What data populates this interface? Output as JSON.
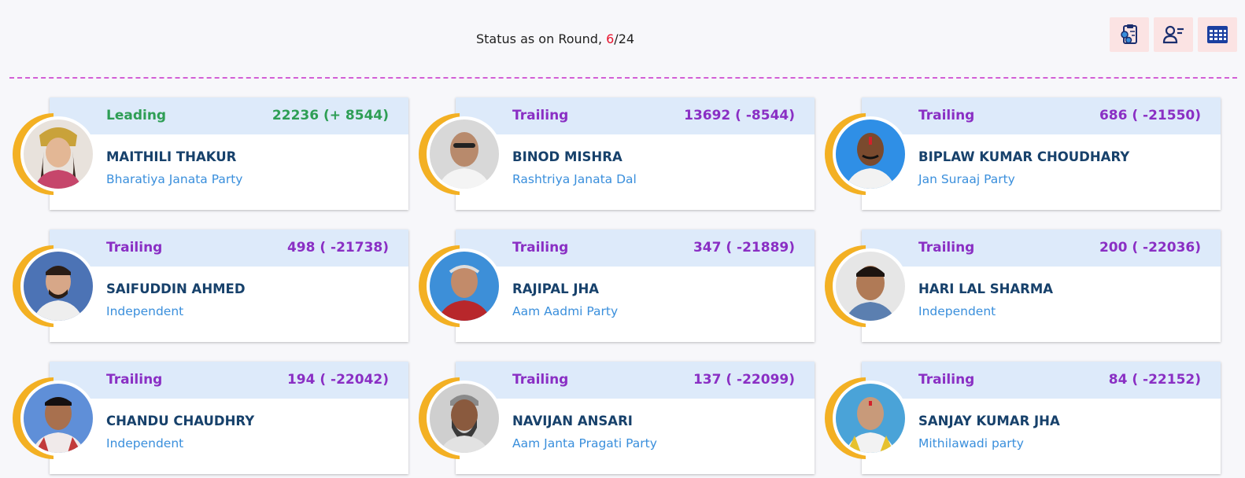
{
  "header": {
    "status_prefix": "Status as on Round, ",
    "round_current": "6",
    "round_total": "/24",
    "icons": [
      "clipboard-settings-icon",
      "user-list-icon",
      "calendar-grid-icon"
    ]
  },
  "colors": {
    "leading": "#2e9e55",
    "trailing": "#8a2fc4",
    "accent_ring": "#f3b023",
    "divider": "#d35fd6",
    "round_current": "#e8122d"
  },
  "candidates": [
    {
      "status": "Leading",
      "votes": "22236 (+ 8544)",
      "name": "MAITHILI THAKUR",
      "party": "Bharatiya Janata Party"
    },
    {
      "status": "Trailing",
      "votes": "13692 ( -8544)",
      "name": "BINOD MISHRA",
      "party": "Rashtriya Janata Dal"
    },
    {
      "status": "Trailing",
      "votes": "686 ( -21550)",
      "name": "BIPLAW KUMAR CHOUDHARY",
      "party": "Jan Suraaj Party"
    },
    {
      "status": "Trailing",
      "votes": "498 ( -21738)",
      "name": "SAIFUDDIN AHMED",
      "party": "Independent"
    },
    {
      "status": "Trailing",
      "votes": "347 ( -21889)",
      "name": "RAJIPAL JHA",
      "party": "Aam Aadmi Party"
    },
    {
      "status": "Trailing",
      "votes": "200 ( -22036)",
      "name": "HARI LAL SHARMA",
      "party": "Independent"
    },
    {
      "status": "Trailing",
      "votes": "194 ( -22042)",
      "name": "CHANDU CHAUDHRY",
      "party": "Independent"
    },
    {
      "status": "Trailing",
      "votes": "137 ( -22099)",
      "name": "NAVIJAN ANSARI",
      "party": "Aam Janta Pragati Party"
    },
    {
      "status": "Trailing",
      "votes": "84 ( -22152)",
      "name": "SANJAY KUMAR JHA",
      "party": "Mithilawadi party"
    }
  ]
}
